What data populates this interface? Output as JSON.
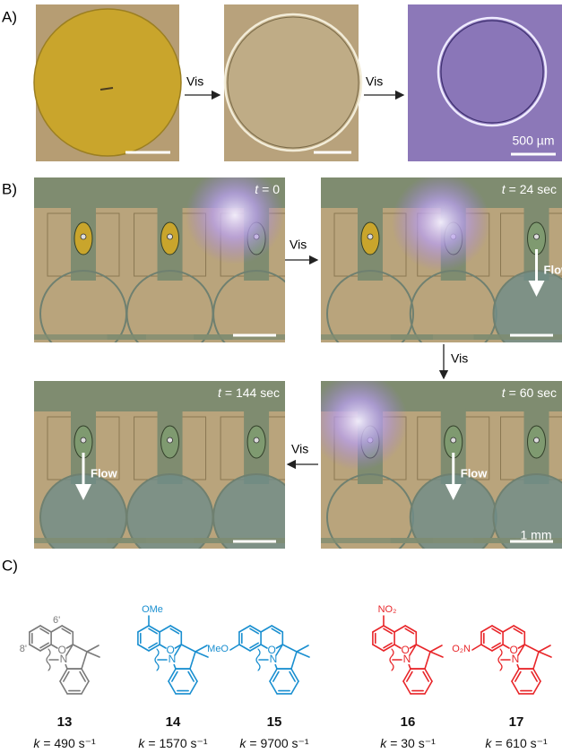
{
  "panel_a": {
    "label": "A)",
    "arrows": [
      "Vis",
      "Vis"
    ],
    "scale_bar": "500 µm"
  },
  "panel_b": {
    "label": "B)",
    "frames": [
      {
        "time": {
          "symbol": "t",
          "value": "= 0"
        }
      },
      {
        "time": {
          "symbol": "t",
          "value": "= 24 sec"
        },
        "flow": "Flow"
      },
      {
        "time": {
          "symbol": "t",
          "value": "= 60 sec"
        },
        "flow": "Flow"
      },
      {
        "time": {
          "symbol": "t",
          "value": "= 144 sec"
        },
        "flow": "Flow"
      }
    ],
    "arrows": [
      "Vis",
      "Vis",
      "Vis"
    ],
    "scale_bar": "1 mm"
  },
  "panel_c": {
    "label": "C)",
    "atoms": {
      "oxygen": "O",
      "nitrogen": "N"
    },
    "compounds": [
      {
        "id": "13",
        "color": "#7a7a7a",
        "locants": [
          "6'",
          "8'"
        ],
        "rate": {
          "symbol": "k",
          "value": "= 490 s⁻¹"
        }
      },
      {
        "id": "14",
        "color": "#1a8fd0",
        "group_6prime": "OMe",
        "rate": {
          "symbol": "k",
          "value": "= 1570 s⁻¹"
        }
      },
      {
        "id": "15",
        "color": "#1a8fd0",
        "group_8prime": "MeO",
        "rate": {
          "symbol": "k",
          "value": "= 9700 s⁻¹"
        }
      },
      {
        "id": "16",
        "color": "#e8262a",
        "group_6prime": "NO₂",
        "rate": {
          "symbol": "k",
          "value": "= 30 s⁻¹"
        }
      },
      {
        "id": "17",
        "color": "#e8262a",
        "group_8prime": "O₂N",
        "rate": {
          "symbol": "k",
          "value": "= 610 s⁻¹"
        }
      }
    ]
  }
}
